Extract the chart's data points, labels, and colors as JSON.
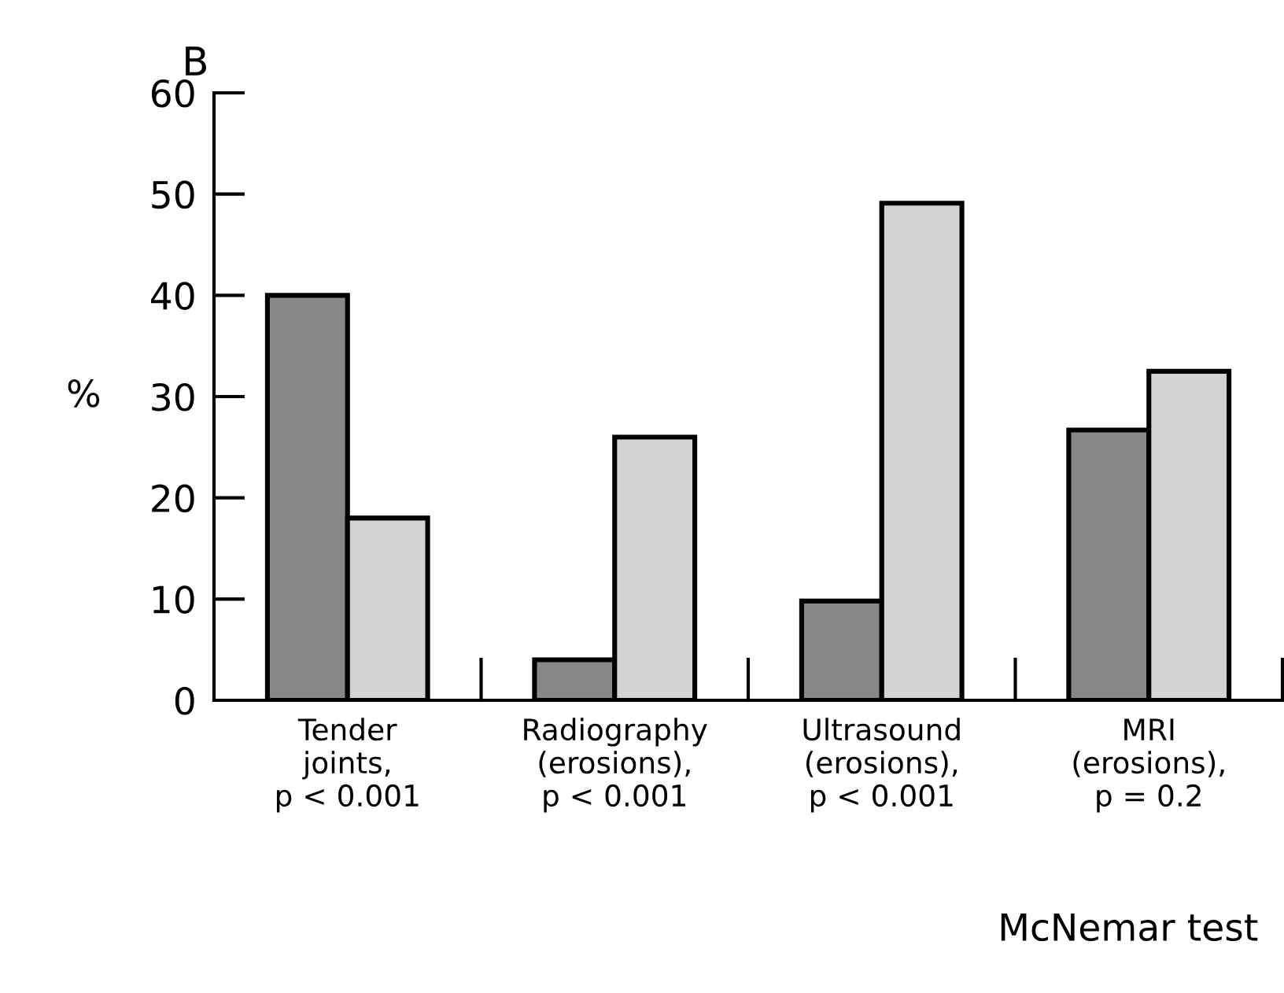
{
  "chart_data": {
    "type": "bar",
    "title": "B",
    "ylabel": "%",
    "categories": [
      "Tender\njoints,\np < 0.001",
      "Radiography\n(erosions),\np < 0.001",
      "Ultrasound\n(erosions),\np < 0.001",
      "MRI\n(erosions),\np = 0.2"
    ],
    "series": [
      {
        "color": "#878787",
        "values": [
          40,
          4,
          9.8,
          26.7
        ]
      },
      {
        "color": "#d3d3d3",
        "values": [
          18,
          26,
          49.1,
          32.5
        ]
      }
    ],
    "ylim": [
      0,
      60
    ],
    "yticks": [
      0,
      10,
      20,
      30,
      40,
      50,
      60
    ],
    "grid": false,
    "legend": false,
    "annotations": [
      "McNemar test"
    ]
  }
}
